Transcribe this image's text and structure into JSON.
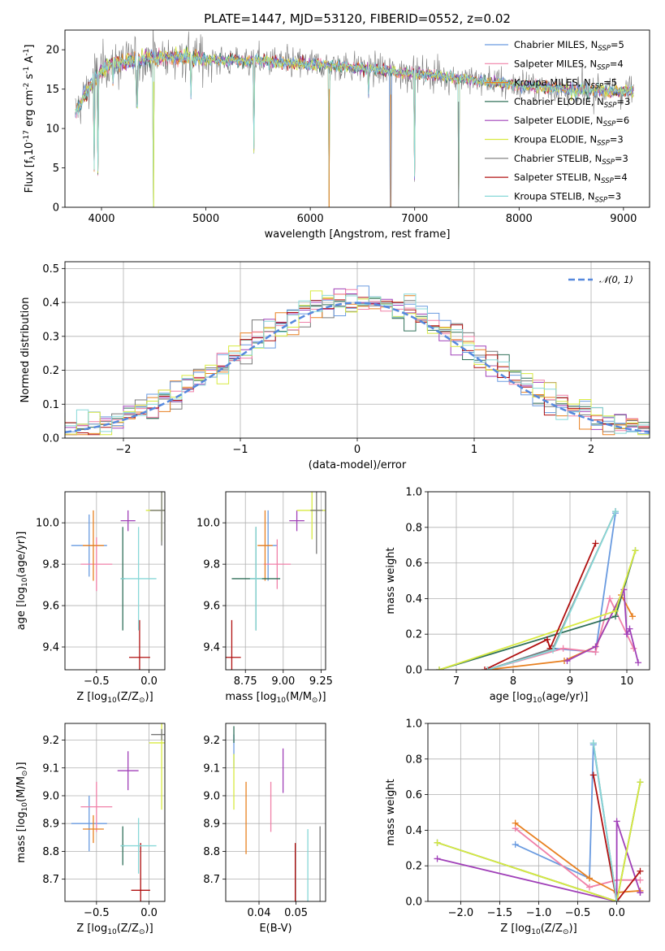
{
  "title": "PLATE=1447, MJD=53120, FIBERID=0552, z=0.02",
  "colors": [
    "#6a9be0",
    "#f080a8",
    "#e88020",
    "#30705a",
    "#a040b8",
    "#d8ea40",
    "#787878",
    "#b01010",
    "#88d8d8"
  ],
  "legend": [
    "Chabrier MILES, N$SSP=5",
    "Salpeter MILES, N$SSP=4",
    "Kroupa MILES, N$SSP=5",
    "Chabrier ELODIE, N$SSP=3",
    "Salpeter ELODIE, N$SSP=6",
    "Kroupa ELODIE, N$SSP=3",
    "Chabrier STELIB, N$SSP=3",
    "Salpeter STELIB, N$SSP=4",
    "Kroupa STELIB, N$SSP=3"
  ],
  "chart_data": [
    {
      "id": "spectrum",
      "type": "line",
      "xlabel": "wavelength [Angstrom, rest frame]",
      "ylabel": "Flux [f$λ10$-17 erg cm$-2 s$-1 A$-1]",
      "xlim": [
        3650,
        9250
      ],
      "ylim": [
        0,
        22.5
      ],
      "xticks": [
        4000,
        5000,
        6000,
        7000,
        8000,
        9000
      ],
      "yticks": [
        0,
        5,
        10,
        15,
        20
      ],
      "x_range": [
        3750,
        9100
      ],
      "continuum": [
        [
          3750,
          12
        ],
        [
          3870,
          15
        ],
        [
          3950,
          16.8
        ],
        [
          4050,
          18
        ],
        [
          4200,
          18.4
        ],
        [
          4400,
          18.8
        ],
        [
          4600,
          19.1
        ],
        [
          4800,
          19.1
        ],
        [
          5000,
          18.8
        ],
        [
          5200,
          18.6
        ],
        [
          5500,
          18.6
        ],
        [
          5800,
          18.3
        ],
        [
          6100,
          18.1
        ],
        [
          6400,
          17.8
        ],
        [
          6700,
          17.4
        ],
        [
          7000,
          17.0
        ],
        [
          7300,
          16.6
        ],
        [
          7600,
          16.1
        ],
        [
          7900,
          15.6
        ],
        [
          8200,
          15.3
        ],
        [
          8500,
          15.0
        ],
        [
          8800,
          14.9
        ],
        [
          9100,
          14.7
        ]
      ],
      "deep_dips": [
        [
          3930,
          4.5
        ],
        [
          3965,
          4.0
        ],
        [
          4500,
          0
        ],
        [
          6180,
          0
        ],
        [
          6770,
          0
        ],
        [
          7420,
          0
        ],
        [
          5460,
          6.8
        ],
        [
          4110,
          15.3
        ],
        [
          4340,
          12.5
        ],
        [
          4860,
          13.6
        ],
        [
          6560,
          13.8
        ],
        [
          8500,
          13.5
        ],
        [
          8545,
          13.4
        ],
        [
          8660,
          13.6
        ],
        [
          7000,
          3.2
        ]
      ]
    },
    {
      "id": "residuals",
      "type": "histogram",
      "xlabel": "(data-model)/error",
      "ylabel": "Normed distribution",
      "xlim": [
        -2.5,
        2.5
      ],
      "ylim": [
        0,
        0.52
      ],
      "xticks": [
        -2,
        -1,
        0,
        1,
        2
      ],
      "xtick_labels": [
        "−2",
        "−1",
        "0",
        "1",
        "2"
      ],
      "yticks": [
        0.0,
        0.1,
        0.2,
        0.3,
        0.4,
        0.5
      ],
      "ytick_labels": [
        "0.0",
        "0.1",
        "0.2",
        "0.3",
        "0.4",
        "0.5"
      ],
      "bin_width": 0.1,
      "reference_label": "𝒩(0, 1)"
    },
    {
      "id": "z-age",
      "type": "errorbar",
      "xlabel": "Z [log$10(Z/Z$⊙)]",
      "ylabel": "age  [log$10(age/yr)]",
      "xlim": [
        -0.8,
        0.15
      ],
      "ylim": [
        9.29,
        10.15
      ],
      "xticks": [
        -0.5,
        0.0
      ],
      "xtick_labels": [
        "−0.5",
        "0.0"
      ],
      "yticks": [
        9.4,
        9.6,
        9.8,
        10.0
      ],
      "ytick_labels": [
        "9.4",
        "9.6",
        "9.8",
        "10.0"
      ],
      "points": [
        {
          "c": 0,
          "x": -0.57,
          "y": 9.89,
          "xe": 0.17,
          "ye": 0.15
        },
        {
          "c": 1,
          "x": -0.5,
          "y": 9.8,
          "xe": 0.15,
          "ye": 0.13
        },
        {
          "c": 2,
          "x": -0.53,
          "y": 9.89,
          "xe": 0.1,
          "ye": 0.17
        },
        {
          "c": 3,
          "x": -0.25,
          "y": 9.73,
          "xe": 0.02,
          "ye": 0.25
        },
        {
          "c": 4,
          "x": -0.2,
          "y": 10.01,
          "xe": 0.07,
          "ye": 0.05
        },
        {
          "c": 5,
          "x": 0.12,
          "y": 10.06,
          "xe": 0.15,
          "ye": 0.15
        },
        {
          "c": 6,
          "x": 0.12,
          "y": 10.06,
          "xe": 0.11,
          "ye": 0.17
        },
        {
          "c": 7,
          "x": -0.09,
          "y": 9.35,
          "xe": 0.1,
          "ye": 0.18
        },
        {
          "c": 8,
          "x": -0.1,
          "y": 9.73,
          "xe": 0.17,
          "ye": 0.25
        }
      ]
    },
    {
      "id": "mass-age",
      "type": "errorbar",
      "xlabel": "mass [log$10(M/M$⊙)]",
      "ylabel": "",
      "xlim": [
        8.62,
        9.28
      ],
      "ylim": [
        9.29,
        10.15
      ],
      "xticks": [
        8.75,
        9.0,
        9.25
      ],
      "xtick_labels": [
        "8.75",
        "9.00",
        "9.25"
      ],
      "yticks": [
        9.4,
        9.6,
        9.8,
        10.0
      ],
      "ytick_labels": [
        "9.4",
        "9.6",
        "9.8",
        "10.0"
      ],
      "points": [
        {
          "c": 0,
          "x": 8.9,
          "y": 9.89,
          "xe": 0.06,
          "ye": 0.17
        },
        {
          "c": 1,
          "x": 8.96,
          "y": 9.8,
          "xe": 0.09,
          "ye": 0.12
        },
        {
          "c": 2,
          "x": 8.88,
          "y": 9.89,
          "xe": 0.05,
          "ye": 0.17
        },
        {
          "c": 3,
          "x": 8.82,
          "y": 9.73,
          "xe": 0.16,
          "ye": 0.25
        },
        {
          "c": 4,
          "x": 9.09,
          "y": 10.01,
          "xe": 0.05,
          "ye": 0.05
        },
        {
          "c": 5,
          "x": 9.19,
          "y": 10.06,
          "xe": 0.1,
          "ye": 0.14
        },
        {
          "c": 6,
          "x": 9.22,
          "y": 10.06,
          "xe": 0.04,
          "ye": 0.21
        },
        {
          "c": 7,
          "x": 8.66,
          "y": 9.35,
          "xe": 0.06,
          "ye": 0.18
        },
        {
          "c": 8,
          "x": 8.82,
          "y": 9.73,
          "xe": 0.04,
          "ye": 0.25
        }
      ]
    },
    {
      "id": "age-weight",
      "type": "line",
      "xlabel": "age  [log$10(age/yr)]",
      "ylabel": "mass weight",
      "xlim": [
        6.5,
        10.4
      ],
      "ylim": [
        0,
        1.0
      ],
      "xticks": [
        7,
        8,
        9,
        10
      ],
      "xtick_labels": [
        "7",
        "8",
        "9",
        "10"
      ],
      "yticks": [
        0.0,
        0.2,
        0.4,
        0.6,
        0.8,
        1.0
      ],
      "ytick_labels": [
        "0.0",
        "0.2",
        "0.4",
        "0.6",
        "0.8",
        "1.0"
      ],
      "series": [
        {
          "c": 0,
          "x": [
            7.55,
            8.7,
            9.45,
            9.8
          ],
          "y": [
            0.0,
            0.12,
            0.1,
            0.88
          ]
        },
        {
          "c": 1,
          "x": [
            7.55,
            8.88,
            9.45,
            9.7,
            10.12
          ],
          "y": [
            0.0,
            0.12,
            0.1,
            0.4,
            0.12
          ]
        },
        {
          "c": 2,
          "x": [
            7.55,
            8.9,
            9.45,
            9.9,
            10.1
          ],
          "y": [
            0.0,
            0.05,
            0.13,
            0.42,
            0.3
          ]
        },
        {
          "c": 3,
          "x": [
            6.7,
            9.8,
            10.15
          ],
          "y": [
            0.0,
            0.3,
            0.67
          ]
        },
        {
          "c": 4,
          "x": [
            8.95,
            9.45,
            9.95,
            10.0,
            10.05,
            10.2
          ],
          "y": [
            0.05,
            0.13,
            0.45,
            0.2,
            0.23,
            0.04
          ]
        },
        {
          "c": 5,
          "x": [
            6.7,
            9.8,
            10.15
          ],
          "y": [
            0.0,
            0.33,
            0.67
          ]
        },
        {
          "c": 6,
          "x": [
            7.55,
            8.7,
            9.8
          ],
          "y": [
            0.0,
            0.12,
            0.89
          ]
        },
        {
          "c": 7,
          "x": [
            7.5,
            8.6,
            8.65,
            9.45
          ],
          "y": [
            0.0,
            0.17,
            0.12,
            0.71
          ]
        },
        {
          "c": 8,
          "x": [
            7.55,
            8.7,
            9.8
          ],
          "y": [
            0.0,
            0.11,
            0.89
          ]
        }
      ]
    },
    {
      "id": "z-mass",
      "type": "errorbar",
      "xlabel": "Z [log$10(Z/Z$⊙)]",
      "ylabel": "mass [log$10(M/M$⊙)]",
      "xlim": [
        -0.8,
        0.15
      ],
      "ylim": [
        8.62,
        9.26
      ],
      "xticks": [
        -0.5,
        0.0
      ],
      "xtick_labels": [
        "−0.5",
        "0.0"
      ],
      "yticks": [
        8.7,
        8.8,
        8.9,
        9.0,
        9.1,
        9.2
      ],
      "ytick_labels": [
        "8.7",
        "8.8",
        "8.9",
        "9.0",
        "9.1",
        "9.2"
      ],
      "points": [
        {
          "c": 0,
          "x": -0.57,
          "y": 8.9,
          "xe": 0.17,
          "ye": 0.1
        },
        {
          "c": 1,
          "x": -0.5,
          "y": 8.96,
          "xe": 0.15,
          "ye": 0.09
        },
        {
          "c": 2,
          "x": -0.53,
          "y": 8.88,
          "xe": 0.1,
          "ye": 0.05
        },
        {
          "c": 3,
          "x": -0.25,
          "y": 8.82,
          "xe": 0.02,
          "ye": 0.07
        },
        {
          "c": 4,
          "x": -0.2,
          "y": 9.09,
          "xe": 0.1,
          "ye": 0.07
        },
        {
          "c": 5,
          "x": 0.12,
          "y": 9.19,
          "xe": 0.12,
          "ye": 0.24
        },
        {
          "c": 6,
          "x": 0.12,
          "y": 9.22,
          "xe": 0.1,
          "ye": 0.02
        },
        {
          "c": 7,
          "x": -0.08,
          "y": 8.66,
          "xe": 0.09,
          "ye": 0.17
        },
        {
          "c": 8,
          "x": -0.1,
          "y": 8.82,
          "xe": 0.17,
          "ye": 0.1
        }
      ]
    },
    {
      "id": "ebv-mass",
      "type": "errorbar",
      "xlabel": "E(B-V)",
      "ylabel": "",
      "xlim": [
        0.031,
        0.058
      ],
      "ylim": [
        8.62,
        9.26
      ],
      "xticks": [
        0.04,
        0.05
      ],
      "xtick_labels": [
        "0.04",
        "0.05"
      ],
      "yticks": [
        8.7,
        8.8,
        8.9,
        9.0,
        9.1,
        9.2
      ],
      "ytick_labels": [
        "8.7",
        "8.8",
        "8.9",
        "9.0",
        "9.1",
        "9.2"
      ],
      "points": [
        {
          "c": 0,
          "x": 0.0332,
          "y": 9.16,
          "xe": 0,
          "ye": 0.06
        },
        {
          "c": 1,
          "x": 0.0432,
          "y": 8.96,
          "xe": 0,
          "ye": 0.09
        },
        {
          "c": 2,
          "x": 0.0365,
          "y": 8.92,
          "xe": 0,
          "ye": 0.13
        },
        {
          "c": 3,
          "x": 0.0332,
          "y": 9.22,
          "xe": 0,
          "ye": 0.03
        },
        {
          "c": 4,
          "x": 0.0465,
          "y": 9.09,
          "xe": 0,
          "ye": 0.08
        },
        {
          "c": 5,
          "x": 0.0332,
          "y": 9.05,
          "xe": 0,
          "ye": 0.1
        },
        {
          "c": 6,
          "x": 0.0565,
          "y": 8.72,
          "xe": 0,
          "ye": 0.17
        },
        {
          "c": 7,
          "x": 0.0498,
          "y": 8.7,
          "xe": 0,
          "ye": 0.13
        },
        {
          "c": 8,
          "x": 0.0532,
          "y": 8.72,
          "xe": 0,
          "ye": 0.16
        }
      ]
    },
    {
      "id": "z-weight",
      "type": "line",
      "xlabel": "Z [log$10(Z/Z$⊙)]",
      "ylabel": "mass weight",
      "xlim": [
        -2.42,
        0.42
      ],
      "ylim": [
        0,
        1.0
      ],
      "xticks": [
        -2.0,
        -1.5,
        -1.0,
        -0.5,
        0.0
      ],
      "xtick_labels": [
        "−2.0",
        "−1.5",
        "−1.0",
        "−0.5",
        "0.0"
      ],
      "yticks": [
        0.0,
        0.2,
        0.4,
        0.6,
        0.8,
        1.0
      ],
      "ytick_labels": [
        "0.0",
        "0.2",
        "0.4",
        "0.6",
        "0.8",
        "1.0"
      ],
      "series": [
        {
          "c": 0,
          "x": [
            -1.3,
            -0.35,
            -0.3,
            0.0
          ],
          "y": [
            0.32,
            0.13,
            0.88,
            0.0
          ]
        },
        {
          "c": 1,
          "x": [
            -1.3,
            -0.35,
            0.0,
            0.3
          ],
          "y": [
            0.41,
            0.08,
            0.12,
            0.12
          ]
        },
        {
          "c": 2,
          "x": [
            -1.3,
            -0.35,
            0.0,
            0.3
          ],
          "y": [
            0.44,
            0.13,
            0.05,
            0.06
          ]
        },
        {
          "c": 3,
          "x": [
            -2.3,
            0.0,
            0.3
          ],
          "y": [
            0.33,
            0.0,
            0.67
          ]
        },
        {
          "c": 4,
          "x": [
            -2.3,
            0.0,
            0.0,
            0.3,
            0.3
          ],
          "y": [
            0.24,
            0.0,
            0.45,
            0.05,
            0.05
          ]
        },
        {
          "c": 5,
          "x": [
            -2.3,
            0.0,
            0.3
          ],
          "y": [
            0.33,
            0.0,
            0.67
          ]
        },
        {
          "c": 6,
          "x": [
            -0.3,
            0.0
          ],
          "y": [
            0.89,
            0.0
          ]
        },
        {
          "c": 7,
          "x": [
            -0.3,
            0.0,
            0.3
          ],
          "y": [
            0.71,
            0.0,
            0.17
          ]
        },
        {
          "c": 8,
          "x": [
            -0.3,
            0.0
          ],
          "y": [
            0.89,
            0.0
          ]
        }
      ]
    }
  ]
}
